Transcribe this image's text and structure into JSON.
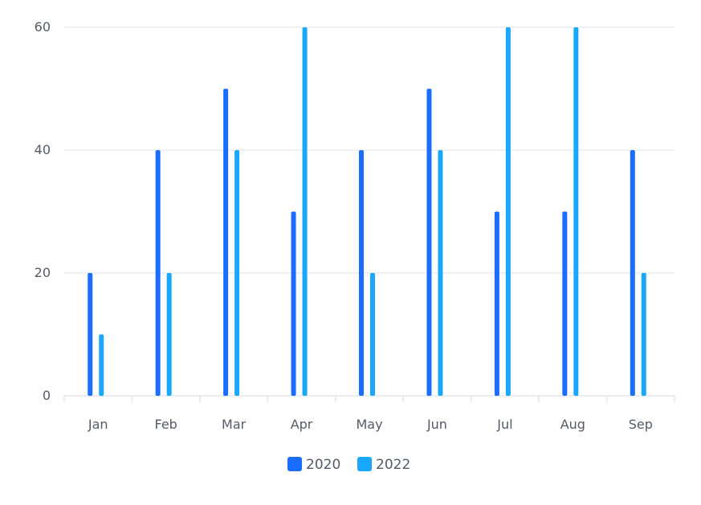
{
  "chart_data": {
    "type": "bar",
    "title": "",
    "xlabel": "",
    "ylabel": "",
    "categories": [
      "Jan",
      "Feb",
      "Mar",
      "Apr",
      "May",
      "Jun",
      "Jul",
      "Aug",
      "Sep"
    ],
    "series": [
      {
        "name": "2020",
        "color": "#1a6dff",
        "values": [
          20,
          40,
          50,
          30,
          40,
          50,
          30,
          30,
          40
        ]
      },
      {
        "name": "2022",
        "color": "#1aa7ff",
        "values": [
          10,
          20,
          40,
          60,
          20,
          40,
          60,
          60,
          20
        ]
      }
    ],
    "ylim": [
      0,
      60
    ],
    "yticks": [
      "0",
      "20",
      "40",
      "60"
    ],
    "grid": true,
    "legend_position": "bottom-center"
  }
}
